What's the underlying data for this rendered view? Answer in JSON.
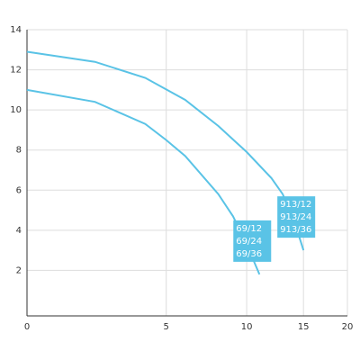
{
  "chart_data": {
    "type": "line",
    "xlim": [
      0,
      20
    ],
    "xticks": [
      0,
      5,
      10,
      15,
      20
    ],
    "ylim": [
      0,
      14
    ],
    "yticks": [
      2,
      4,
      6,
      8,
      10,
      12,
      14
    ],
    "grid": true,
    "series": [
      {
        "labels": [
          "913/12",
          "913/24",
          "913/36"
        ],
        "color": "#5ac3e6",
        "x": [
          0,
          2,
          4,
          6,
          8,
          10,
          12,
          13,
          14,
          15
        ],
        "values": [
          12.9,
          12.4,
          11.6,
          10.5,
          9.2,
          7.9,
          6.6,
          5.8,
          4.6,
          3.0
        ]
      },
      {
        "labels": [
          "69/12",
          "69/24",
          "69/36"
        ],
        "color": "#5ac3e6",
        "x": [
          0,
          2,
          4,
          5,
          6,
          8,
          9,
          10,
          11
        ],
        "values": [
          11.0,
          10.4,
          9.3,
          8.5,
          7.7,
          5.8,
          4.7,
          3.3,
          1.8
        ]
      }
    ]
  }
}
